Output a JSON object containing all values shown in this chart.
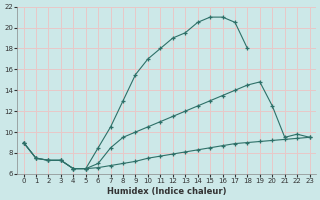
{
  "title": "",
  "xlabel": "Humidex (Indice chaleur)",
  "ylabel": "",
  "background_color": "#cce8e8",
  "grid_color": "#e8c8c8",
  "line_color": "#2d7068",
  "xlim": [
    -0.5,
    23.5
  ],
  "ylim": [
    6,
    22
  ],
  "xticks": [
    0,
    1,
    2,
    3,
    4,
    5,
    6,
    7,
    8,
    9,
    10,
    11,
    12,
    13,
    14,
    15,
    16,
    17,
    18,
    19,
    20,
    21,
    22,
    23
  ],
  "yticks": [
    6,
    8,
    10,
    12,
    14,
    16,
    18,
    20,
    22
  ],
  "line_top_x": [
    0,
    1,
    2,
    3,
    4,
    5,
    6,
    7,
    8,
    9,
    10,
    11,
    12,
    13,
    14,
    15,
    16,
    17,
    18
  ],
  "line_top_y": [
    9.0,
    7.5,
    7.3,
    7.3,
    6.5,
    6.5,
    8.5,
    10.5,
    13.0,
    15.5,
    17.0,
    18.0,
    19.0,
    19.5,
    20.5,
    21.0,
    21.0,
    20.5,
    18.0
  ],
  "line_mid_x": [
    0,
    1,
    2,
    3,
    4,
    5,
    6,
    7,
    8,
    9,
    10,
    11,
    12,
    13,
    14,
    15,
    16,
    17,
    18,
    19,
    20,
    21,
    22,
    23
  ],
  "line_mid_y": [
    9.0,
    7.5,
    7.3,
    7.3,
    6.5,
    6.5,
    7.0,
    8.5,
    9.5,
    10.0,
    10.5,
    11.0,
    11.5,
    12.0,
    12.5,
    13.0,
    13.5,
    14.0,
    14.5,
    14.8,
    12.5,
    9.5,
    9.8,
    9.5
  ],
  "line_bot_x": [
    0,
    1,
    2,
    3,
    4,
    5,
    6,
    7,
    8,
    9,
    10,
    11,
    12,
    13,
    14,
    15,
    16,
    17,
    18,
    19,
    20,
    21,
    22,
    23
  ],
  "line_bot_y": [
    9.0,
    7.5,
    7.3,
    7.3,
    6.5,
    6.5,
    6.6,
    6.8,
    7.0,
    7.2,
    7.5,
    7.7,
    7.9,
    8.1,
    8.3,
    8.5,
    8.7,
    8.9,
    9.0,
    9.1,
    9.2,
    9.3,
    9.4,
    9.5
  ]
}
